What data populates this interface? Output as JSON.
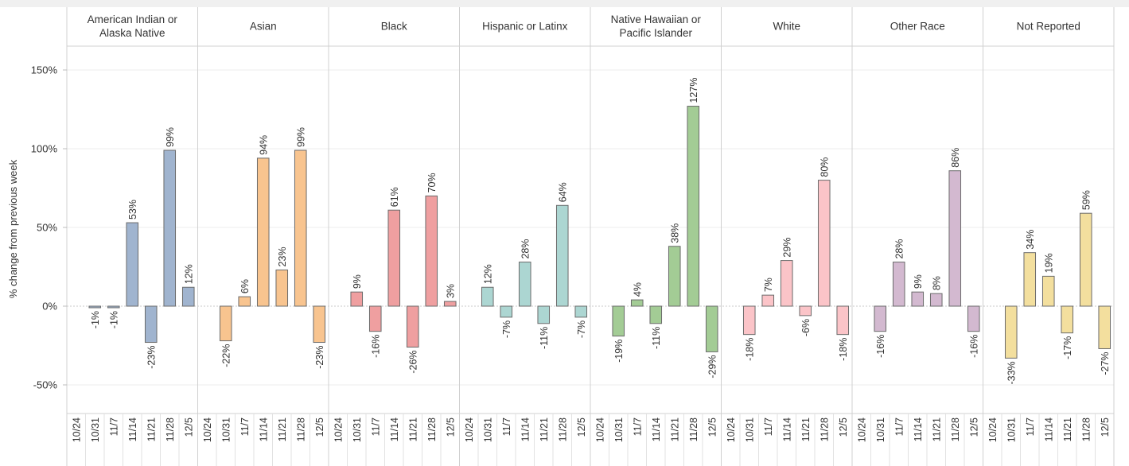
{
  "chart_data": {
    "type": "bar",
    "ylabel": "% change from previous week",
    "ylim": [
      -0.72,
      1.6
    ],
    "yticks": [
      -0.5,
      0,
      0.5,
      1.0,
      1.5
    ],
    "ytick_labels": [
      "-50%",
      "0%",
      "50%",
      "100%",
      "150%"
    ],
    "categories": [
      "10/24",
      "10/31",
      "11/7",
      "11/14",
      "11/21",
      "11/28",
      "12/5"
    ],
    "panels": [
      {
        "name": "American Indian or Alaska Native",
        "title_lines": [
          "American Indian or",
          "Alaska Native"
        ],
        "color": "#a0b4cf",
        "values": [
          null,
          -0.01,
          -0.01,
          0.53,
          -0.23,
          0.99,
          0.12
        ],
        "labels": [
          "",
          "-1%",
          "-1%",
          "53%",
          "-23%",
          "99%",
          "12%"
        ]
      },
      {
        "name": "Asian",
        "title_lines": [
          "Asian"
        ],
        "color": "#f8c48f",
        "values": [
          null,
          -0.22,
          0.06,
          0.94,
          0.23,
          0.99,
          -0.23
        ],
        "labels": [
          "",
          "-22%",
          "6%",
          "94%",
          "23%",
          "99%",
          "-23%"
        ]
      },
      {
        "name": "Black",
        "title_lines": [
          "Black"
        ],
        "color": "#ef9fa0",
        "values": [
          null,
          0.09,
          -0.16,
          0.61,
          -0.26,
          0.7,
          0.03
        ],
        "labels": [
          "",
          "9%",
          "-16%",
          "61%",
          "-26%",
          "70%",
          "3%"
        ]
      },
      {
        "name": "Hispanic or Latinx",
        "title_lines": [
          "Hispanic or Latinx"
        ],
        "color": "#acd6d2",
        "values": [
          null,
          0.12,
          -0.07,
          0.28,
          -0.11,
          0.64,
          -0.07
        ],
        "labels": [
          "",
          "12%",
          "-7%",
          "28%",
          "-11%",
          "64%",
          "-7%"
        ]
      },
      {
        "name": "Native Hawaiian or Pacific Islander",
        "title_lines": [
          "Native Hawaiian or",
          "Pacific Islander"
        ],
        "color": "#a3cc95",
        "values": [
          null,
          -0.19,
          0.04,
          -0.11,
          0.38,
          1.27,
          -0.29
        ],
        "labels": [
          "",
          "-19%",
          "4%",
          "-11%",
          "38%",
          "127%",
          "-29%"
        ]
      },
      {
        "name": "White",
        "title_lines": [
          "White"
        ],
        "color": "#fbc4c8",
        "values": [
          null,
          -0.18,
          0.07,
          0.29,
          -0.06,
          0.8,
          -0.18
        ],
        "labels": [
          "",
          "-18%",
          "7%",
          "29%",
          "-6%",
          "80%",
          "-18%"
        ]
      },
      {
        "name": "Other Race",
        "title_lines": [
          "Other Race"
        ],
        "color": "#d3b9d0",
        "values": [
          null,
          -0.16,
          0.28,
          0.09,
          0.08,
          0.86,
          -0.16
        ],
        "labels": [
          "",
          "-16%",
          "28%",
          "9%",
          "8%",
          "86%",
          "-16%"
        ]
      },
      {
        "name": "Not Reported",
        "title_lines": [
          "Not Reported"
        ],
        "color": "#f3df9e",
        "values": [
          null,
          -0.33,
          0.34,
          0.19,
          -0.17,
          0.59,
          -0.27
        ],
        "labels": [
          "",
          "-33%",
          "34%",
          "19%",
          "-17%",
          "59%",
          "-27%"
        ]
      }
    ],
    "grid": true,
    "legend": "none"
  },
  "colors": {
    "bar_stroke": "#6b6b6b",
    "divider": "#d0d0d0",
    "grid": "#eeeeee",
    "zero_line": "#c8c8c8",
    "top_band": "#f0f0f0"
  }
}
